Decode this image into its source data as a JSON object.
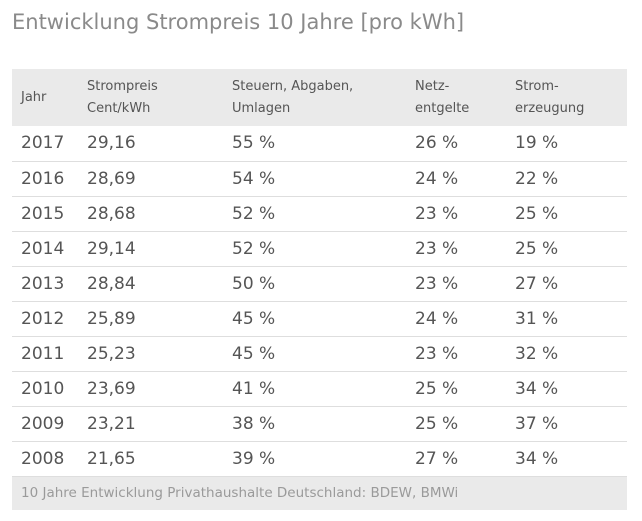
{
  "title": "Entwicklung Strompreis 10 Jahre [pro kWh]",
  "chart_data": {
    "type": "table",
    "title": "Entwicklung Strompreis 10 Jahre [pro kWh]",
    "headers": [
      [
        "Jahr"
      ],
      [
        "Strompreis",
        "Cent/kWh"
      ],
      [
        "Steuern, Abgaben,",
        "Umlagen"
      ],
      [
        "Netz-",
        "entgelte"
      ],
      [
        "Strom-",
        "erzeugung"
      ]
    ],
    "rows": [
      [
        "2017",
        "29,16",
        "55 %",
        "26 %",
        "19 %"
      ],
      [
        "2016",
        "28,69",
        "54 %",
        "24 %",
        "22 %"
      ],
      [
        "2015",
        "28,68",
        "52 %",
        "23 %",
        "25 %"
      ],
      [
        "2014",
        "29,14",
        "52 %",
        "23 %",
        "25 %"
      ],
      [
        "2013",
        "28,84",
        "50 %",
        "23 %",
        "27 %"
      ],
      [
        "2012",
        "25,89",
        "45 %",
        "24 %",
        "31 %"
      ],
      [
        "2011",
        "25,23",
        "45 %",
        "23 %",
        "32 %"
      ],
      [
        "2010",
        "23,69",
        "41 %",
        "25 %",
        "34 %"
      ],
      [
        "2009",
        "23,21",
        "38 %",
        "25 %",
        "37 %"
      ],
      [
        "2008",
        "21,65",
        "39 %",
        "27 %",
        "34 %"
      ]
    ],
    "footer": "10 Jahre Entwicklung Privathaushalte Deutschland: BDEW, BMWi"
  }
}
